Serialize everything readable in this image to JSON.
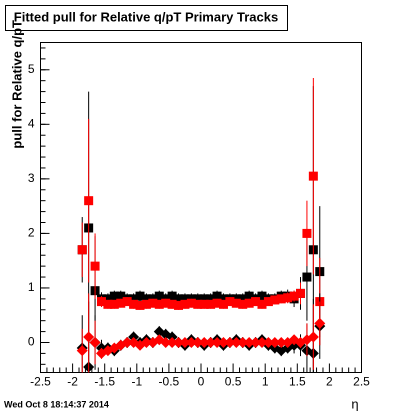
{
  "chart_data": {
    "type": "scatter",
    "title": "Fitted pull for Relative q/pT  Primary Tracks",
    "y_label": "pull for Relative q/pT",
    "x_label": "η",
    "timestamp": "Wed Oct  8 18:14:37 2014",
    "xlim": [
      -2.5,
      2.5
    ],
    "ylim": [
      -0.55,
      5.5
    ],
    "xticks": [
      -2.5,
      -2,
      -1.5,
      -1,
      -0.5,
      0,
      0.5,
      1,
      1.5,
      2,
      2.5
    ],
    "yticks": [
      0,
      1,
      2,
      3,
      4,
      5
    ],
    "x": [
      -1.85,
      -1.75,
      -1.65,
      -1.55,
      -1.45,
      -1.35,
      -1.25,
      -1.15,
      -1.05,
      -0.95,
      -0.85,
      -0.75,
      -0.65,
      -0.55,
      -0.45,
      -0.35,
      -0.25,
      -0.15,
      -0.05,
      0.05,
      0.15,
      0.25,
      0.35,
      0.45,
      0.55,
      0.65,
      0.75,
      0.85,
      0.95,
      1.05,
      1.15,
      1.25,
      1.35,
      1.45,
      1.55,
      1.65,
      1.75,
      1.85
    ],
    "series": [
      {
        "color": "#000000",
        "marker": "square",
        "values": [
          1.7,
          2.1,
          0.95,
          0.8,
          0.8,
          0.85,
          0.85,
          0.8,
          0.8,
          0.85,
          0.8,
          0.8,
          0.85,
          0.8,
          0.85,
          0.8,
          0.8,
          0.8,
          0.8,
          0.8,
          0.8,
          0.85,
          0.8,
          0.8,
          0.8,
          0.8,
          0.85,
          0.8,
          0.85,
          0.8,
          0.8,
          0.85,
          0.85,
          0.8,
          0.9,
          1.2,
          1.7,
          1.3
        ],
        "errors": [
          0.6,
          2.5,
          1.0,
          0.12,
          0.1,
          0.1,
          0.1,
          0.1,
          0.1,
          0.1,
          0.1,
          0.1,
          0.1,
          0.1,
          0.1,
          0.1,
          0.1,
          0.1,
          0.1,
          0.1,
          0.1,
          0.1,
          0.1,
          0.1,
          0.1,
          0.1,
          0.1,
          0.1,
          0.1,
          0.1,
          0.1,
          0.1,
          0.12,
          0.15,
          0.3,
          0.8,
          3.0,
          1.2
        ]
      },
      {
        "color": "#ff0000",
        "marker": "square",
        "values": [
          1.7,
          2.6,
          1.4,
          0.75,
          0.7,
          0.7,
          0.72,
          0.75,
          0.7,
          0.68,
          0.7,
          0.72,
          0.7,
          0.72,
          0.7,
          0.68,
          0.7,
          0.72,
          0.7,
          0.7,
          0.7,
          0.72,
          0.7,
          0.75,
          0.72,
          0.7,
          0.72,
          0.75,
          0.7,
          0.75,
          0.78,
          0.8,
          0.82,
          0.85,
          0.9,
          2.0,
          3.05,
          0.75
        ],
        "errors": [
          0.5,
          1.5,
          0.6,
          0.1,
          0.08,
          0.08,
          0.08,
          0.08,
          0.08,
          0.08,
          0.08,
          0.08,
          0.08,
          0.08,
          0.08,
          0.08,
          0.08,
          0.08,
          0.08,
          0.08,
          0.08,
          0.08,
          0.08,
          0.08,
          0.08,
          0.08,
          0.08,
          0.08,
          0.08,
          0.08,
          0.08,
          0.08,
          0.1,
          0.1,
          0.2,
          0.6,
          1.8,
          0.8
        ]
      },
      {
        "color": "#000000",
        "marker": "diamond",
        "values": [
          -0.1,
          -0.45,
          0.0,
          -0.1,
          -0.1,
          -0.15,
          -0.05,
          0.0,
          0.1,
          0.0,
          0.05,
          0.0,
          0.2,
          0.15,
          0.1,
          0.0,
          -0.05,
          0.05,
          0.0,
          -0.05,
          0.0,
          0.05,
          -0.05,
          0.0,
          0.05,
          0.0,
          -0.05,
          0.0,
          0.05,
          -0.05,
          -0.1,
          -0.15,
          -0.1,
          -0.05,
          -0.05,
          -0.15,
          -0.2,
          0.3
        ],
        "errors": [
          0.6,
          1.2,
          0.5,
          0.15,
          0.1,
          0.1,
          0.1,
          0.1,
          0.1,
          0.1,
          0.1,
          0.1,
          0.1,
          0.1,
          0.1,
          0.1,
          0.1,
          0.1,
          0.1,
          0.1,
          0.1,
          0.1,
          0.1,
          0.1,
          0.1,
          0.1,
          0.1,
          0.1,
          0.1,
          0.1,
          0.1,
          0.1,
          0.1,
          0.15,
          0.2,
          0.5,
          1.0,
          0.6
        ]
      },
      {
        "color": "#ff0000",
        "marker": "diamond",
        "values": [
          -0.15,
          0.1,
          0.0,
          -0.2,
          -0.15,
          -0.1,
          -0.05,
          0.0,
          0.0,
          -0.05,
          0.0,
          0.0,
          0.05,
          0.0,
          0.0,
          0.0,
          0.0,
          0.0,
          0.0,
          0.0,
          0.0,
          0.0,
          0.0,
          0.0,
          0.0,
          0.0,
          0.0,
          0.0,
          0.0,
          0.0,
          0.0,
          0.0,
          0.0,
          0.05,
          0.0,
          0.05,
          0.1,
          0.35
        ],
        "errors": [
          0.4,
          0.8,
          0.4,
          0.1,
          0.06,
          0.06,
          0.06,
          0.06,
          0.06,
          0.06,
          0.06,
          0.06,
          0.06,
          0.06,
          0.06,
          0.06,
          0.06,
          0.06,
          0.06,
          0.06,
          0.06,
          0.06,
          0.06,
          0.06,
          0.06,
          0.06,
          0.06,
          0.06,
          0.06,
          0.06,
          0.06,
          0.06,
          0.06,
          0.08,
          0.1,
          0.3,
          0.6,
          0.4
        ]
      }
    ]
  }
}
